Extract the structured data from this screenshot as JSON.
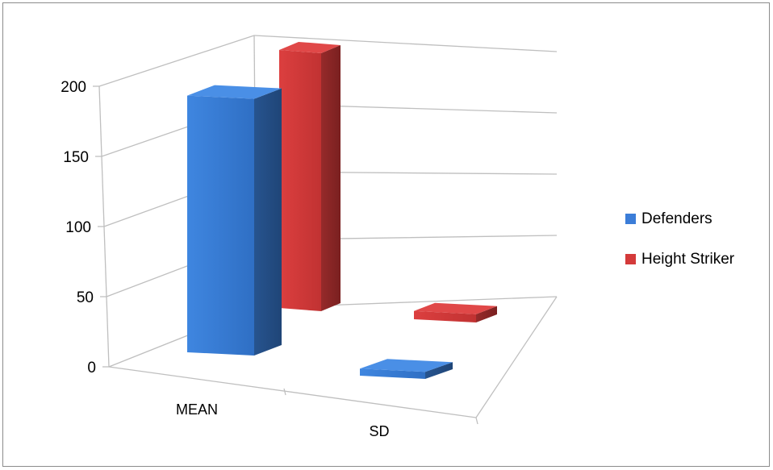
{
  "chart_data": {
    "type": "bar",
    "categories": [
      "MEAN",
      "SD"
    ],
    "series": [
      {
        "name": "Defenders",
        "values": [
          183,
          5
        ],
        "color": "#3b7dd8"
      },
      {
        "name": "Height Striker",
        "values": [
          188,
          6
        ],
        "color": "#d43a3a"
      }
    ],
    "ylim": [
      0,
      200
    ],
    "yticks": [
      0,
      50,
      100,
      150,
      200
    ],
    "grid": true,
    "legend_position": "right",
    "style": "3d clustered column"
  }
}
